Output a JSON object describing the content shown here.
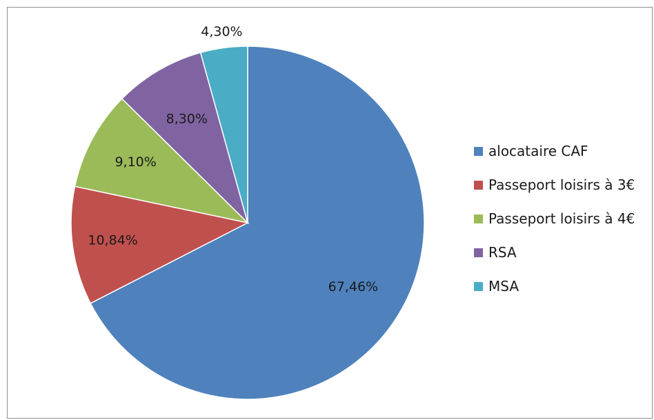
{
  "chart_data": {
    "type": "pie",
    "title": "",
    "slices": [
      {
        "label": "alocataire CAF",
        "value": 67.46,
        "value_label": "67,46%",
        "color": "#4F81BD"
      },
      {
        "label": "Passeport loisirs à 3€",
        "value": 10.84,
        "value_label": "10,84%",
        "color": "#C0504D"
      },
      {
        "label": "Passeport loisirs à 4€",
        "value": 9.1,
        "value_label": "9,10%",
        "color": "#9BBB59"
      },
      {
        "label": "RSA",
        "value": 8.3,
        "value_label": "8,30%",
        "color": "#8064A2"
      },
      {
        "label": "MSA",
        "value": 4.3,
        "value_label": "4,30%",
        "color": "#4BACC6"
      }
    ],
    "legend_position": "right"
  }
}
